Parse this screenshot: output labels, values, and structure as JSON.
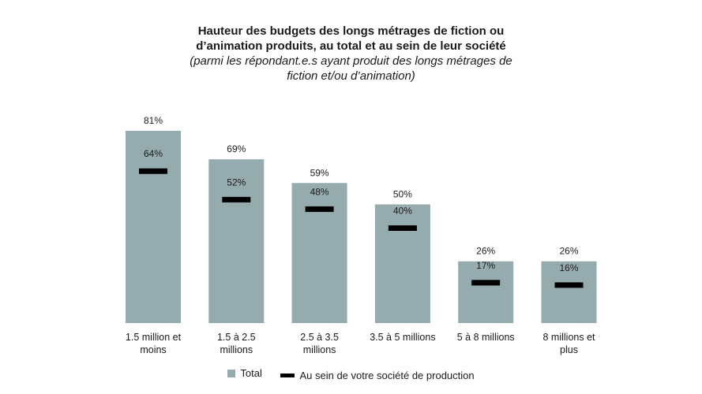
{
  "chart_data": {
    "type": "bar",
    "title_lines": [
      "Hauteur des budgets des longs métrages de fiction ou",
      "d’animation produits, au total et au sein de leur société"
    ],
    "subtitle_lines": [
      "(parmi les répondant.e.s ayant produit des longs métrages de",
      "fiction et/ou d’animation)"
    ],
    "categories": [
      [
        "1.5 million et",
        "moins"
      ],
      [
        "1.5 à 2.5",
        "millions"
      ],
      [
        "2.5 à 3.5",
        "millions"
      ],
      [
        "3.5 à 5 millions"
      ],
      [
        "5 à 8 millions"
      ],
      [
        "8 millions et",
        "plus"
      ]
    ],
    "series": [
      {
        "name": "Total",
        "values": [
          81,
          69,
          59,
          50,
          26,
          26
        ],
        "value_labels": [
          "81%",
          "69%",
          "59%",
          "50%",
          "26%",
          "26%"
        ]
      },
      {
        "name": "Au sein de votre société de production",
        "values": [
          64,
          52,
          48,
          40,
          17,
          16
        ],
        "value_labels": [
          "64%",
          "52%",
          "48%",
          "40%",
          "17%",
          "16%"
        ]
      }
    ],
    "ylim": [
      0,
      100
    ],
    "grid": false,
    "legend_position": "bottom",
    "colors": {
      "bar": "#95abad",
      "marker": "#000000",
      "text": "#1a1a1a"
    }
  }
}
